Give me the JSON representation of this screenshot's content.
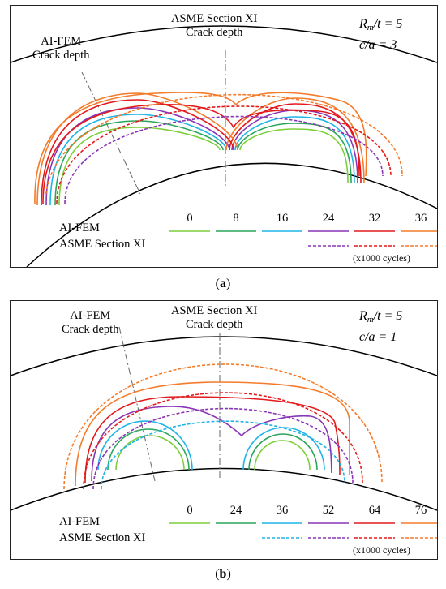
{
  "panels": [
    {
      "id": "a",
      "caption_letter": "a",
      "aifem_crack_depth_label": [
        "AI-FEM",
        "Crack depth"
      ],
      "asme_crack_depth_label": [
        "ASME Section XI",
        "Crack depth"
      ],
      "params": {
        "rm": "R",
        "rm_sub": "m",
        "rm_rest": "/t = 5",
        "ca": "c/a = 3"
      },
      "legend": {
        "aifem_label": "AI-FEM",
        "asme_label": "ASME Section XI",
        "units": "(x1000 cycles)",
        "cycles": [
          "0",
          "8",
          "16",
          "24",
          "32",
          "36"
        ],
        "asme_dashed_indices": [
          3,
          4,
          5
        ]
      }
    },
    {
      "id": "b",
      "caption_letter": "b",
      "aifem_crack_depth_label": [
        "AI-FEM",
        "Crack depth"
      ],
      "asme_crack_depth_label": [
        "ASME Section XI",
        "Crack depth"
      ],
      "params": {
        "rm": "R",
        "rm_sub": "m",
        "rm_rest": "/t = 5",
        "ca": "c/a = 1"
      },
      "legend": {
        "aifem_label": "AI-FEM",
        "asme_label": "ASME Section XI",
        "units": "(x1000 cycles)",
        "cycles": [
          "0",
          "24",
          "36",
          "52",
          "64",
          "76"
        ],
        "asme_dashed_indices": [
          2,
          3,
          4,
          5
        ]
      }
    }
  ],
  "colors": [
    "#7ccf3a",
    "#2aa55a",
    "#1fb3e6",
    "#8a35b5",
    "#e31a1c",
    "#f47b2a"
  ]
}
